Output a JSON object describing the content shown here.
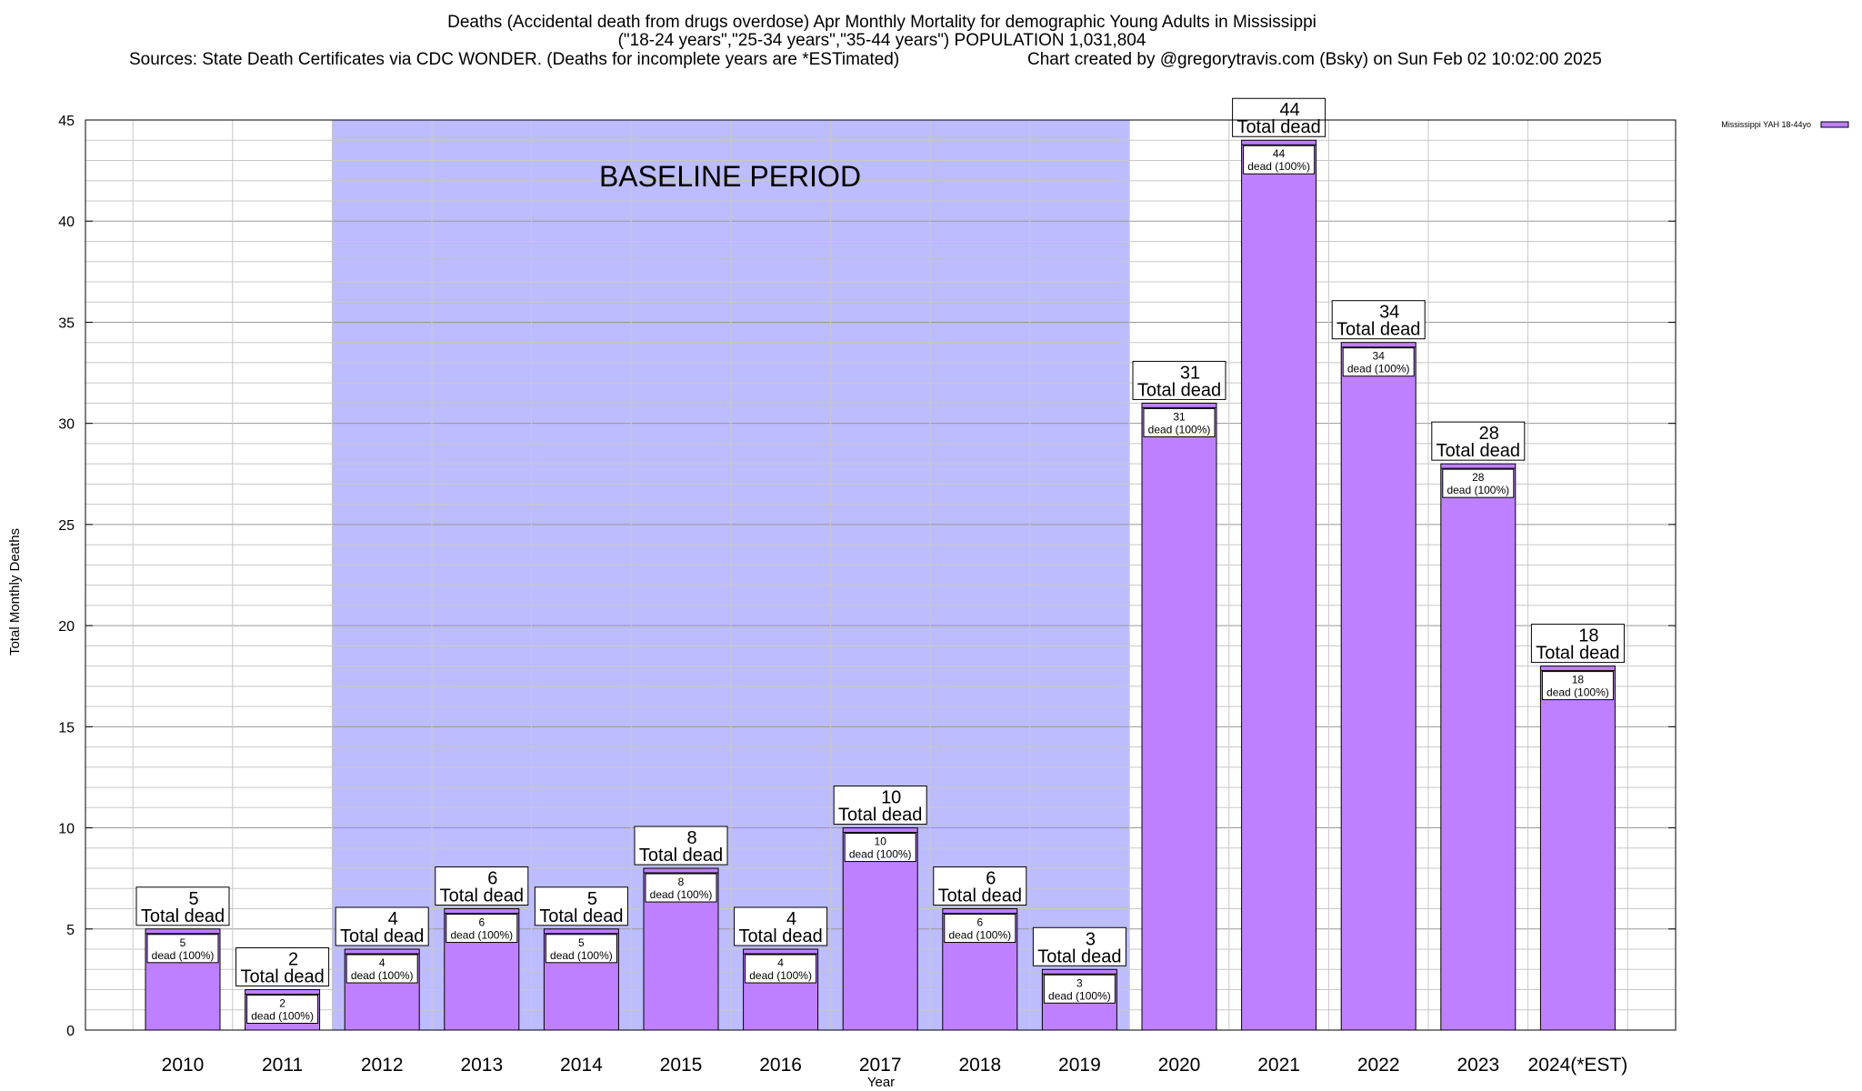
{
  "chart_data": {
    "type": "bar",
    "title": "Deaths (Accidental death from drugs overdose) Apr Monthly Mortality for demographic Young Adults in Mississippi",
    "subtitle": "(\"18-24 years\",\"25-34 years\",\"35-44 years\") POPULATION 1,031,804",
    "source": "Sources: State Death Certificates via CDC WONDER. (Deaths for incomplete years are *ESTimated)",
    "credit": "Chart created by @gregorytravis.com (Bsky) on Sun Feb 02 10:02:00 2025",
    "xlabel": "Year",
    "ylabel": "Total Monthly Deaths",
    "ylim": [
      0,
      45
    ],
    "yticks": [
      0,
      5,
      10,
      15,
      20,
      25,
      30,
      35,
      40,
      45
    ],
    "grid": true,
    "legend_position": "top-right",
    "categories": [
      "2010",
      "2011",
      "2012",
      "2013",
      "2014",
      "2015",
      "2016",
      "2017",
      "2018",
      "2019",
      "2020",
      "2021",
      "2022",
      "2023",
      "2024(*EST)"
    ],
    "series": [
      {
        "name": "Mississippi YAH 18-44yo",
        "color": "#bf80ff",
        "values": [
          5,
          2,
          4,
          6,
          5,
          8,
          4,
          10,
          6,
          3,
          31,
          44,
          34,
          28,
          18
        ]
      }
    ],
    "annotation": {
      "text": "BASELINE PERIOD",
      "from_category": "2012",
      "to_category": "2019",
      "color": "#bcbcff"
    },
    "total_label": "Total dead",
    "inner_label": "dead (100%)"
  }
}
